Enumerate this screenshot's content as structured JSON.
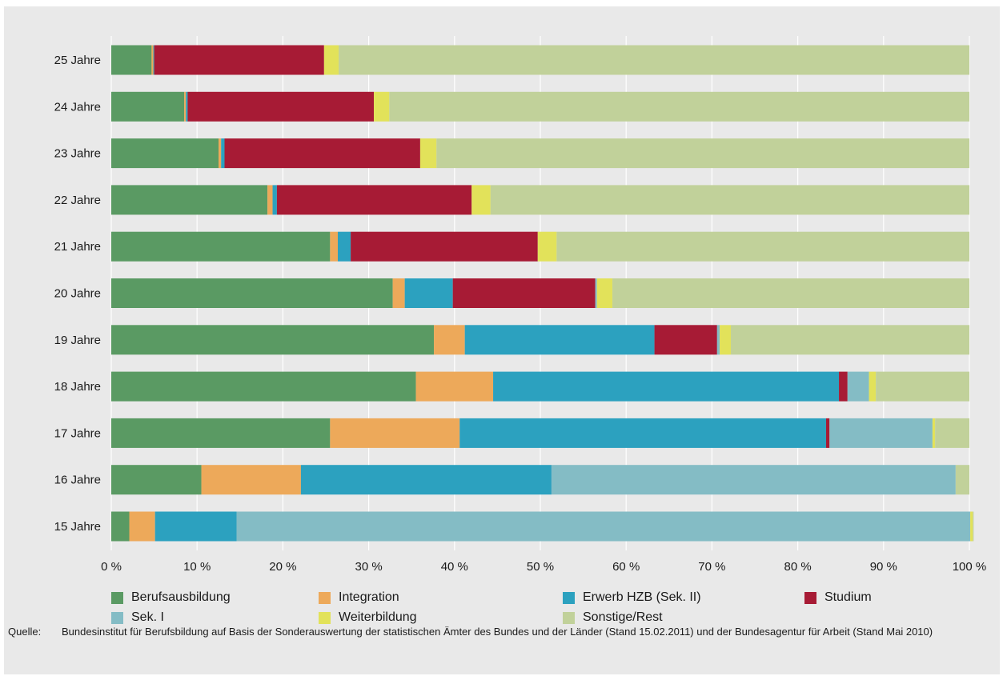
{
  "chart_data": {
    "type": "bar",
    "orientation": "horizontal",
    "stacked": true,
    "categories": [
      "25 Jahre",
      "24 Jahre",
      "23 Jahre",
      "22 Jahre",
      "21 Jahre",
      "20 Jahre",
      "19 Jahre",
      "18 Jahre",
      "17 Jahre",
      "16 Jahre",
      "15 Jahre"
    ],
    "series": [
      {
        "name": "Berufsausbildung",
        "color": "#5a9a63",
        "values": [
          4.7,
          8.5,
          12.5,
          18.2,
          25.5,
          32.8,
          37.6,
          35.5,
          25.5,
          10.5,
          2.1
        ]
      },
      {
        "name": "Integration",
        "color": "#eda95a",
        "values": [
          0.2,
          0.2,
          0.3,
          0.6,
          0.9,
          1.4,
          3.6,
          9.0,
          15.1,
          11.6,
          3.0
        ]
      },
      {
        "name": "Erwerb HZB (Sek. II)",
        "color": "#2ca1bf",
        "values": [
          0.1,
          0.2,
          0.4,
          0.5,
          1.5,
          5.6,
          22.1,
          40.3,
          42.7,
          29.2,
          9.5
        ]
      },
      {
        "name": "Studium",
        "color": "#a71b35",
        "values": [
          19.8,
          21.7,
          22.8,
          22.7,
          21.8,
          16.6,
          7.3,
          1.0,
          0.4,
          0.0,
          0.0
        ]
      },
      {
        "name": "Sek. I",
        "color": "#84bcc5",
        "values": [
          0.0,
          0.0,
          0.0,
          0.0,
          0.0,
          0.2,
          0.3,
          2.5,
          12.0,
          47.1,
          85.5
        ]
      },
      {
        "name": "Weiterbildung",
        "color": "#e2e25a",
        "values": [
          1.7,
          1.8,
          1.9,
          2.2,
          2.2,
          1.8,
          1.3,
          0.8,
          0.3,
          0.0,
          0.3
        ]
      },
      {
        "name": "Sonstige/Rest",
        "color": "#c1d19a",
        "values": [
          73.5,
          67.6,
          62.1,
          55.8,
          48.1,
          41.6,
          27.8,
          10.9,
          4.0,
          1.6,
          0.1
        ]
      }
    ],
    "xlim": [
      0,
      100
    ],
    "xticks": [
      "0 %",
      "10 %",
      "20 %",
      "30 %",
      "40 %",
      "50 %",
      "60 %",
      "70 %",
      "80 %",
      "90 %",
      "100 %"
    ],
    "grid": "vertical",
    "legend_position": "bottom"
  },
  "source_label": "Quelle:",
  "source_text": "Bundesinstitut für Berufsbildung auf Basis der Sonderauswertung der statistischen Ämter des Bundes und der Länder (Stand 15.02.2011) und der Bundesagentur für Arbeit (Stand Mai 2010)"
}
